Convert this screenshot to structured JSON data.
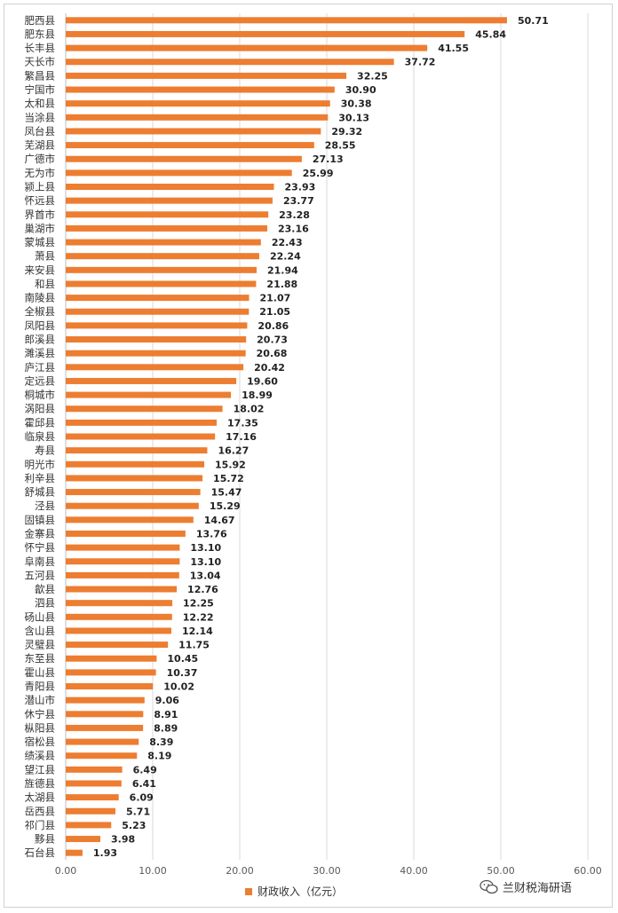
{
  "chart_data": {
    "type": "bar",
    "orientation": "horizontal",
    "categories": [
      "肥西县",
      "肥东县",
      "长丰县",
      "天长市",
      "繁昌县",
      "宁国市",
      "太和县",
      "当涂县",
      "凤台县",
      "芜湖县",
      "广德市",
      "无为市",
      "颍上县",
      "怀远县",
      "界首市",
      "巢湖市",
      "蒙城县",
      "萧县",
      "来安县",
      "和县",
      "南陵县",
      "全椒县",
      "凤阳县",
      "郎溪县",
      "濉溪县",
      "庐江县",
      "定远县",
      "桐城市",
      "涡阳县",
      "霍邱县",
      "临泉县",
      "寿县",
      "明光市",
      "利辛县",
      "舒城县",
      "泾县",
      "固镇县",
      "金寨县",
      "怀宁县",
      "阜南县",
      "五河县",
      "歙县",
      "泗县",
      "砀山县",
      "含山县",
      "灵璧县",
      "东至县",
      "霍山县",
      "青阳县",
      "潜山市",
      "休宁县",
      "枞阳县",
      "宿松县",
      "绩溪县",
      "望江县",
      "旌德县",
      "太湖县",
      "岳西县",
      "祁门县",
      "黟县",
      "石台县"
    ],
    "series": [
      {
        "name": "财政收入（亿元）",
        "values": [
          50.71,
          45.84,
          41.55,
          37.72,
          32.25,
          30.9,
          30.38,
          30.13,
          29.32,
          28.55,
          27.13,
          25.99,
          23.93,
          23.77,
          23.28,
          23.16,
          22.43,
          22.24,
          21.94,
          21.88,
          21.07,
          21.05,
          20.86,
          20.73,
          20.68,
          20.42,
          19.6,
          18.99,
          18.02,
          17.35,
          17.16,
          16.27,
          15.92,
          15.72,
          15.47,
          15.29,
          14.67,
          13.76,
          13.1,
          13.1,
          13.04,
          12.76,
          12.25,
          12.22,
          12.14,
          11.75,
          10.45,
          10.37,
          10.02,
          9.06,
          8.91,
          8.89,
          8.39,
          8.19,
          6.49,
          6.41,
          6.09,
          5.71,
          5.23,
          3.98,
          1.93
        ],
        "labels": [
          "50.71",
          "45.84",
          "41.55",
          "37.72",
          "32.25",
          "30.90",
          "30.38",
          "30.13",
          "29.32",
          "28.55",
          "27.13",
          "25.99",
          "23.93",
          "23.77",
          "23.28",
          "23.16",
          "22.43",
          "22.24",
          "21.94",
          "21.88",
          "21.07",
          "21.05",
          "20.86",
          "20.73",
          "20.68",
          "20.42",
          "19.60",
          "18.99",
          "18.02",
          "17.35",
          "17.16",
          "16.27",
          "15.92",
          "15.72",
          "15.47",
          "15.29",
          "14.67",
          "13.76",
          "13.10",
          "13.10",
          "13.04",
          "12.76",
          "12.25",
          "12.22",
          "12.14",
          "11.75",
          "10.45",
          "10.37",
          "10.02",
          "9.06",
          "8.91",
          "8.89",
          "8.39",
          "8.19",
          "6.49",
          "6.41",
          "6.09",
          "5.71",
          "5.23",
          "3.98",
          "1.93"
        ]
      }
    ],
    "xlim": [
      0,
      60
    ],
    "xticks": [
      "0.00",
      "10.00",
      "20.00",
      "30.00",
      "40.00",
      "50.00",
      "60.00"
    ],
    "grid": true,
    "legend_position": "bottom",
    "bar_color": "#ED7D31"
  },
  "legend": {
    "label": "财政收入（亿元）"
  },
  "watermark": {
    "text": "兰财税海研语",
    "icon": "wechat-icon"
  }
}
